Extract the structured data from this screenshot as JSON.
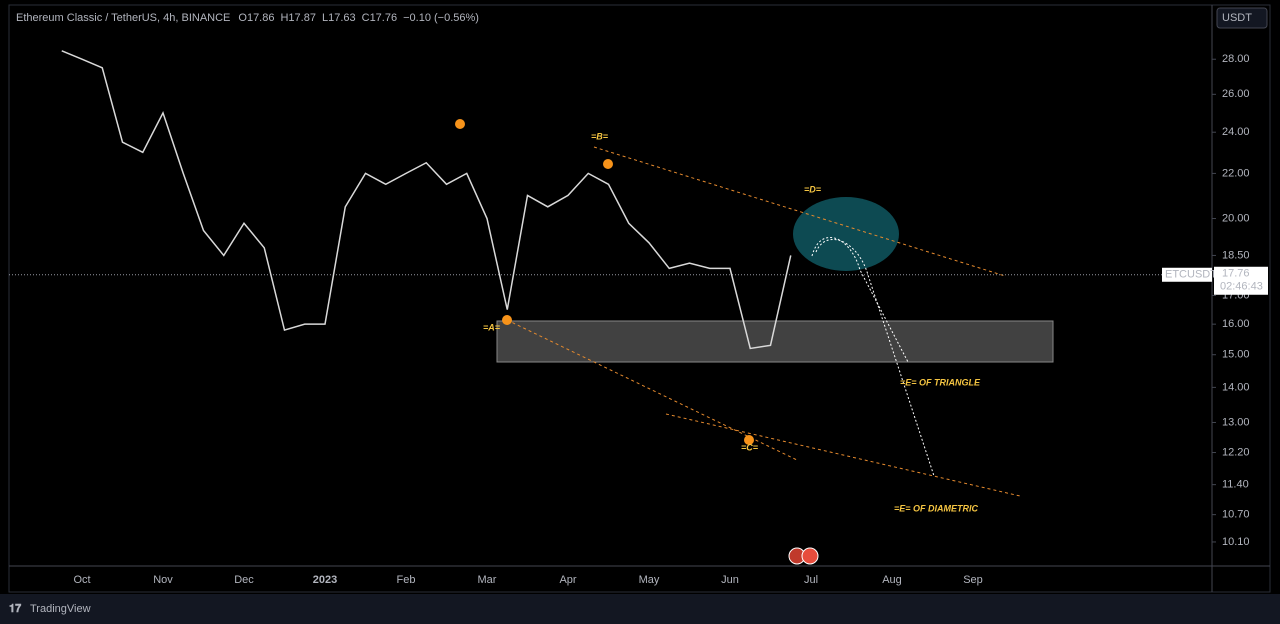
{
  "chart_data": {
    "type": "line",
    "title": "Ethereum Classic / TetherUS, 4h, BINANCE",
    "ohlc": [
      "O17.86",
      "H17.87",
      "L17.63",
      "C17.76",
      "−0.10 (−0.56%)"
    ],
    "currency": "USDT",
    "categories": [
      null,
      null,
      "Oct",
      null,
      null,
      null,
      "Nov",
      null,
      null,
      null,
      "Dec",
      null,
      null,
      null,
      "2023",
      null,
      null,
      null,
      "Feb",
      null,
      null,
      null,
      "Mar",
      null,
      null,
      null,
      "Apr",
      null,
      null,
      null,
      "May",
      null,
      null,
      null,
      "Jun",
      null,
      null,
      null,
      "Jul",
      null,
      null,
      null,
      "Aug",
      null,
      null,
      null,
      "Sep",
      null,
      null,
      null
    ],
    "series": [
      {
        "name": "ETCUSDT",
        "color": "#d9d9d9",
        "values": [
          null,
          28.5,
          28.0,
          27.5,
          23.5,
          23.0,
          25.0,
          22.0,
          19.5,
          18.5,
          19.8,
          18.8,
          15.8,
          16.0,
          16.0,
          20.5,
          22.0,
          21.5,
          22.0,
          22.5,
          21.5,
          22.0,
          20.0,
          16.5,
          21.0,
          20.5,
          21.0,
          22.0,
          21.5,
          19.8,
          19.0,
          18.0,
          18.2,
          18.0,
          18.0,
          15.2,
          15.3,
          18.5,
          null,
          null,
          null,
          null,
          null,
          null,
          null,
          null,
          null,
          null,
          null,
          null
        ]
      }
    ],
    "log_scale": true,
    "ylim": [
      9.6,
      31.2
    ],
    "yticks": [
      {
        "value": 28,
        "label": "28.00"
      },
      {
        "value": 26,
        "label": "26.00"
      },
      {
        "value": 24,
        "label": "24.00"
      },
      {
        "value": 22,
        "label": "22.00"
      },
      {
        "value": 20,
        "label": "20.00"
      },
      {
        "value": 18.5,
        "label": "18.50"
      },
      {
        "value": 17,
        "label": "17.00"
      },
      {
        "value": 16,
        "label": "16.00"
      },
      {
        "value": 15,
        "label": "15.00"
      },
      {
        "value": 14,
        "label": "14.00"
      },
      {
        "value": 13,
        "label": "13.00"
      },
      {
        "value": 12.2,
        "label": "12.20"
      },
      {
        "value": 11.4,
        "label": "11.40"
      },
      {
        "value": 10.7,
        "label": "10.70"
      },
      {
        "value": 10.1,
        "label": "10.10"
      }
    ],
    "last_price": {
      "symbol": "ETCUSDT",
      "value": 17.76,
      "countdown": "02:46:43"
    },
    "annotations": [
      "=A=",
      "=B=",
      "=C=",
      "=D=",
      "=E= OF TRIANGLE",
      "=E= OF DIAMETRIC"
    ],
    "brand": "TradingView"
  }
}
